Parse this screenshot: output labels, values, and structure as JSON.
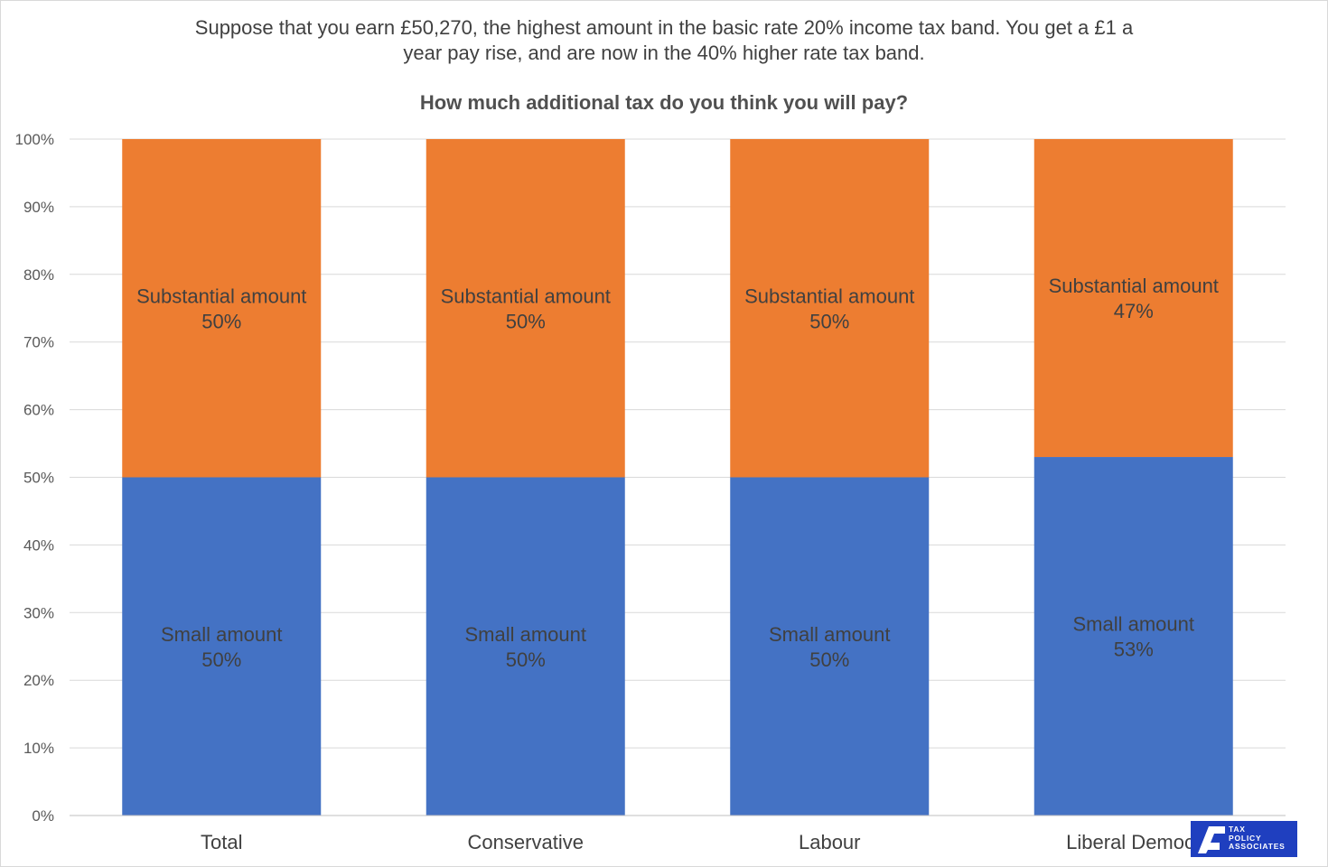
{
  "chart_data": {
    "type": "bar",
    "stacked": true,
    "title_lines": [
      "Suppose that you earn £50,270, the highest amount in the basic rate 20% income tax band. You get a £1 a",
      "year pay rise, and are now in the 40% higher rate tax band."
    ],
    "subtitle": "How much additional tax do you think you will pay?",
    "categories": [
      "Total",
      "Conservative",
      "Labour",
      "Liberal Democr"
    ],
    "series": [
      {
        "name": "Small amount",
        "values": [
          50,
          50,
          50,
          53
        ],
        "labels": [
          "50%",
          "50%",
          "50%",
          "53%"
        ],
        "color": "#4472c4"
      },
      {
        "name": "Substantial amount",
        "values": [
          50,
          50,
          50,
          47
        ],
        "labels": [
          "50%",
          "50%",
          "50%",
          "47%"
        ],
        "color": "#ed7d31"
      }
    ],
    "ylim": [
      0,
      100
    ],
    "yticks": [
      "0%",
      "10%",
      "20%",
      "30%",
      "40%",
      "50%",
      "60%",
      "70%",
      "80%",
      "90%",
      "100%"
    ],
    "grid": true,
    "legend": "none"
  },
  "logo": {
    "lines": [
      "TAX",
      "POLICY",
      "ASSOCIATES"
    ],
    "color": "#1f3fbf"
  }
}
